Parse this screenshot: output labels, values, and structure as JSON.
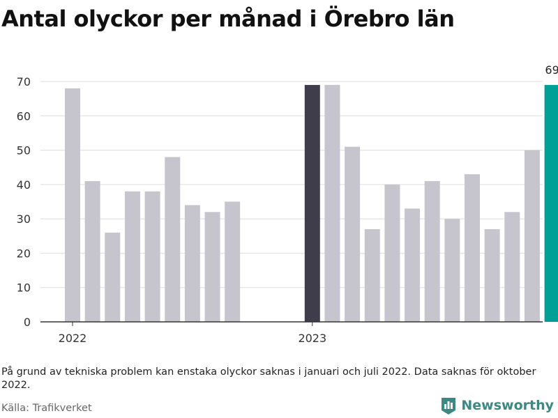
{
  "title": "Antal olyckor per månad i Örebro län",
  "note": "På grund av tekniska problem kan enstaka olyckor saknas i januari och juli 2022. Data saknas för oktober 2022.",
  "source": "Källa: Trafikverket",
  "brand": {
    "name": "Newsworthy",
    "icon": "bar-chart-logo-icon"
  },
  "colors": {
    "default": "#c6c5ce",
    "first_2023": "#3f3d4c",
    "latest": "#00a097",
    "axis": "#333333",
    "grid": "#dddddd"
  },
  "chart_data": {
    "type": "bar",
    "categories": [
      "2022-01",
      "2022-02",
      "2022-03",
      "2022-04",
      "2022-05",
      "2022-06",
      "2022-07",
      "2022-08",
      "2022-09",
      "2022-10",
      "2022-11",
      "2022-12",
      "2023-01",
      "2023-02",
      "2023-03",
      "2023-04",
      "2023-05",
      "2023-06",
      "2023-07",
      "2023-08",
      "2023-09",
      "2023-10",
      "2023-11",
      "2023-12",
      "2024-01"
    ],
    "values": [
      68,
      41,
      26,
      38,
      38,
      48,
      34,
      32,
      35,
      null,
      null,
      null,
      69,
      69,
      51,
      27,
      40,
      33,
      41,
      30,
      43,
      27,
      32,
      50,
      69
    ],
    "highlight": {
      "2023-01": "first_2023",
      "2024-01": "latest"
    },
    "value_labels": [
      {
        "category": "2024-01",
        "text": "69"
      }
    ],
    "x_ticks": [
      {
        "category": "2022-01",
        "label": "2022"
      },
      {
        "category": "2023-01",
        "label": "2023"
      }
    ],
    "y_ticks": [
      0,
      10,
      20,
      30,
      40,
      50,
      60,
      70
    ],
    "ylim": [
      0,
      70
    ],
    "xlabel": "",
    "ylabel": "",
    "grid": true
  }
}
